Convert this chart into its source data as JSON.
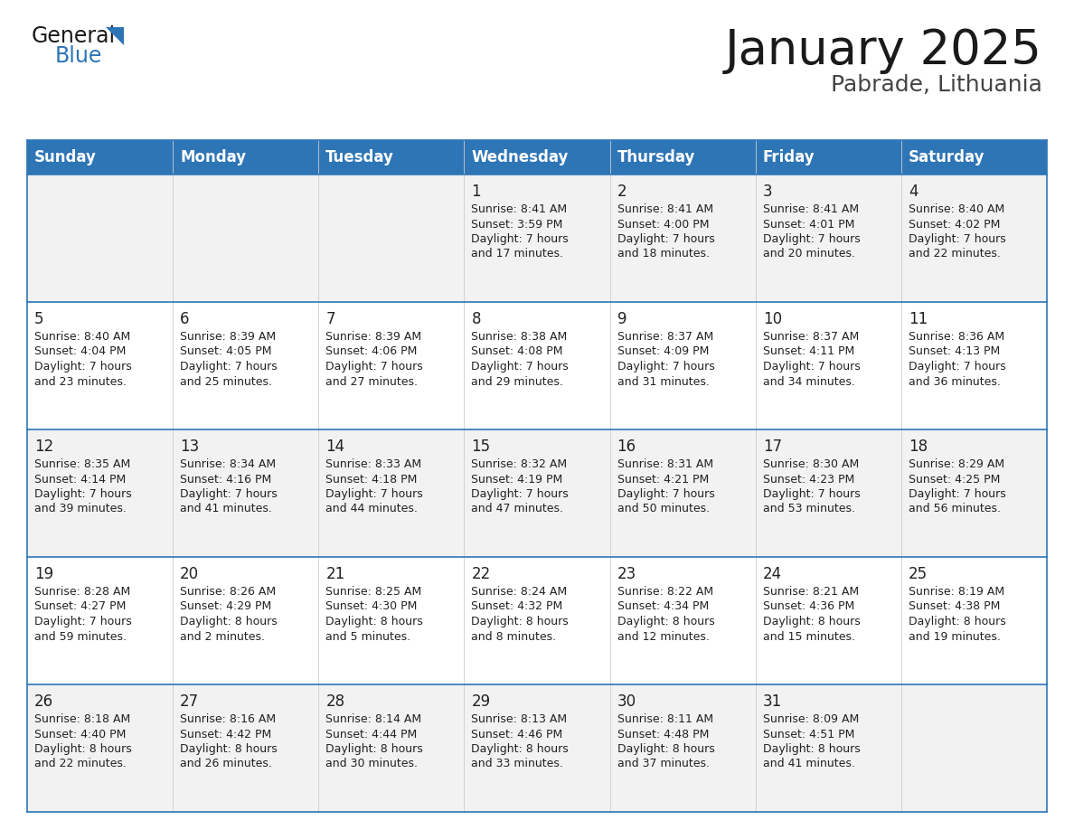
{
  "title": "January 2025",
  "subtitle": "Pabrade, Lithuania",
  "header_color": "#2E75B6",
  "header_text_color": "#FFFFFF",
  "days_of_week": [
    "Sunday",
    "Monday",
    "Tuesday",
    "Wednesday",
    "Thursday",
    "Friday",
    "Saturday"
  ],
  "bg_color": "#FFFFFF",
  "cell_bg_even": "#F2F2F2",
  "cell_bg_odd": "#FFFFFF",
  "border_color": "#2E75B6",
  "text_color": "#222222",
  "calendar": [
    [
      {
        "day": null,
        "sunrise": null,
        "sunset": null,
        "daylight": null
      },
      {
        "day": null,
        "sunrise": null,
        "sunset": null,
        "daylight": null
      },
      {
        "day": null,
        "sunrise": null,
        "sunset": null,
        "daylight": null
      },
      {
        "day": 1,
        "sunrise": "8:41 AM",
        "sunset": "3:59 PM",
        "daylight": "7 hours and 17 minutes."
      },
      {
        "day": 2,
        "sunrise": "8:41 AM",
        "sunset": "4:00 PM",
        "daylight": "7 hours and 18 minutes."
      },
      {
        "day": 3,
        "sunrise": "8:41 AM",
        "sunset": "4:01 PM",
        "daylight": "7 hours and 20 minutes."
      },
      {
        "day": 4,
        "sunrise": "8:40 AM",
        "sunset": "4:02 PM",
        "daylight": "7 hours and 22 minutes."
      }
    ],
    [
      {
        "day": 5,
        "sunrise": "8:40 AM",
        "sunset": "4:04 PM",
        "daylight": "7 hours and 23 minutes."
      },
      {
        "day": 6,
        "sunrise": "8:39 AM",
        "sunset": "4:05 PM",
        "daylight": "7 hours and 25 minutes."
      },
      {
        "day": 7,
        "sunrise": "8:39 AM",
        "sunset": "4:06 PM",
        "daylight": "7 hours and 27 minutes."
      },
      {
        "day": 8,
        "sunrise": "8:38 AM",
        "sunset": "4:08 PM",
        "daylight": "7 hours and 29 minutes."
      },
      {
        "day": 9,
        "sunrise": "8:37 AM",
        "sunset": "4:09 PM",
        "daylight": "7 hours and 31 minutes."
      },
      {
        "day": 10,
        "sunrise": "8:37 AM",
        "sunset": "4:11 PM",
        "daylight": "7 hours and 34 minutes."
      },
      {
        "day": 11,
        "sunrise": "8:36 AM",
        "sunset": "4:13 PM",
        "daylight": "7 hours and 36 minutes."
      }
    ],
    [
      {
        "day": 12,
        "sunrise": "8:35 AM",
        "sunset": "4:14 PM",
        "daylight": "7 hours and 39 minutes."
      },
      {
        "day": 13,
        "sunrise": "8:34 AM",
        "sunset": "4:16 PM",
        "daylight": "7 hours and 41 minutes."
      },
      {
        "day": 14,
        "sunrise": "8:33 AM",
        "sunset": "4:18 PM",
        "daylight": "7 hours and 44 minutes."
      },
      {
        "day": 15,
        "sunrise": "8:32 AM",
        "sunset": "4:19 PM",
        "daylight": "7 hours and 47 minutes."
      },
      {
        "day": 16,
        "sunrise": "8:31 AM",
        "sunset": "4:21 PM",
        "daylight": "7 hours and 50 minutes."
      },
      {
        "day": 17,
        "sunrise": "8:30 AM",
        "sunset": "4:23 PM",
        "daylight": "7 hours and 53 minutes."
      },
      {
        "day": 18,
        "sunrise": "8:29 AM",
        "sunset": "4:25 PM",
        "daylight": "7 hours and 56 minutes."
      }
    ],
    [
      {
        "day": 19,
        "sunrise": "8:28 AM",
        "sunset": "4:27 PM",
        "daylight": "7 hours and 59 minutes."
      },
      {
        "day": 20,
        "sunrise": "8:26 AM",
        "sunset": "4:29 PM",
        "daylight": "8 hours and 2 minutes."
      },
      {
        "day": 21,
        "sunrise": "8:25 AM",
        "sunset": "4:30 PM",
        "daylight": "8 hours and 5 minutes."
      },
      {
        "day": 22,
        "sunrise": "8:24 AM",
        "sunset": "4:32 PM",
        "daylight": "8 hours and 8 minutes."
      },
      {
        "day": 23,
        "sunrise": "8:22 AM",
        "sunset": "4:34 PM",
        "daylight": "8 hours and 12 minutes."
      },
      {
        "day": 24,
        "sunrise": "8:21 AM",
        "sunset": "4:36 PM",
        "daylight": "8 hours and 15 minutes."
      },
      {
        "day": 25,
        "sunrise": "8:19 AM",
        "sunset": "4:38 PM",
        "daylight": "8 hours and 19 minutes."
      }
    ],
    [
      {
        "day": 26,
        "sunrise": "8:18 AM",
        "sunset": "4:40 PM",
        "daylight": "8 hours and 22 minutes."
      },
      {
        "day": 27,
        "sunrise": "8:16 AM",
        "sunset": "4:42 PM",
        "daylight": "8 hours and 26 minutes."
      },
      {
        "day": 28,
        "sunrise": "8:14 AM",
        "sunset": "4:44 PM",
        "daylight": "8 hours and 30 minutes."
      },
      {
        "day": 29,
        "sunrise": "8:13 AM",
        "sunset": "4:46 PM",
        "daylight": "8 hours and 33 minutes."
      },
      {
        "day": 30,
        "sunrise": "8:11 AM",
        "sunset": "4:48 PM",
        "daylight": "8 hours and 37 minutes."
      },
      {
        "day": 31,
        "sunrise": "8:09 AM",
        "sunset": "4:51 PM",
        "daylight": "8 hours and 41 minutes."
      },
      {
        "day": null,
        "sunrise": null,
        "sunset": null,
        "daylight": null
      }
    ]
  ],
  "title_fontsize": 38,
  "subtitle_fontsize": 18,
  "day_name_fontsize": 12,
  "day_num_fontsize": 12,
  "cell_text_fontsize": 9
}
